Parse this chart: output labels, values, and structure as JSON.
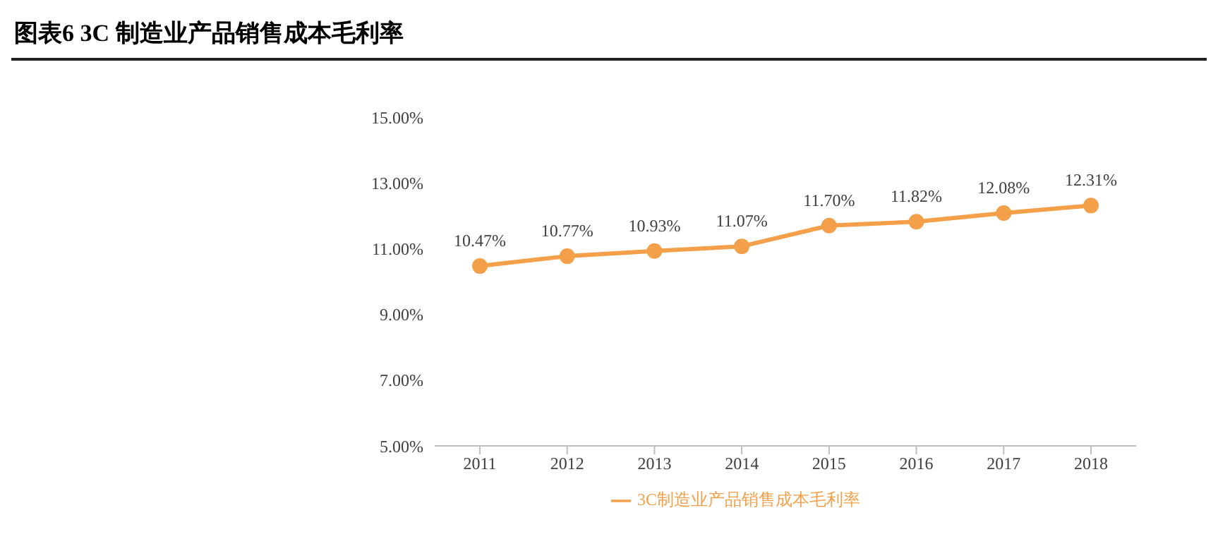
{
  "chart_data": {
    "type": "line",
    "title": "图表6 3C 制造业产品销售成本毛利率",
    "categories": [
      "2011",
      "2012",
      "2013",
      "2014",
      "2015",
      "2016",
      "2017",
      "2018"
    ],
    "series": [
      {
        "name": "3C制造业产品销售成本毛利率",
        "color": "#f4a04a",
        "values": [
          10.47,
          10.77,
          10.93,
          11.07,
          11.7,
          11.82,
          12.08,
          12.31
        ],
        "value_labels": [
          "10.47%",
          "10.77%",
          "10.93%",
          "11.07%",
          "11.70%",
          "11.82%",
          "12.08%",
          "12.31%"
        ]
      }
    ],
    "ylim": [
      5,
      15
    ],
    "yticks": [
      {
        "value": 5,
        "label": "5.00%"
      },
      {
        "value": 7,
        "label": "7.00%"
      },
      {
        "value": 9,
        "label": "9.00%"
      },
      {
        "value": 11,
        "label": "11.00%"
      },
      {
        "value": 13,
        "label": "13.00%"
      },
      {
        "value": 15,
        "label": "15.00%"
      }
    ],
    "legend": "bottom",
    "marker": "circle",
    "line_style": "solid"
  }
}
